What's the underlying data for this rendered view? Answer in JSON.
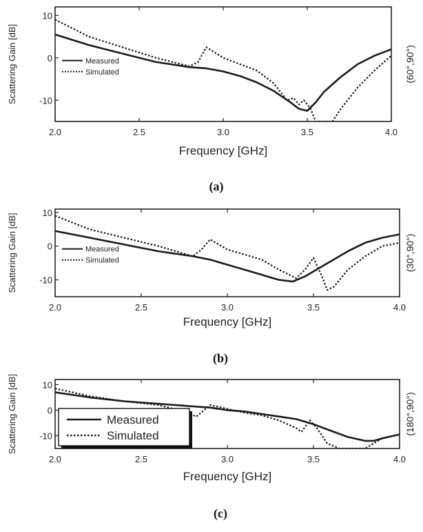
{
  "chart_data": [
    {
      "type": "line",
      "caption": "(a)",
      "ylabel": "Scattering Gain [dB]",
      "xlabel": "Frequency [GHz]",
      "right_label": "(60°,90°)",
      "xlim": [
        2.0,
        4.0
      ],
      "ylim": [
        -15,
        12
      ],
      "xticks": [
        "2.0",
        "2.5",
        "3.0",
        "3.5",
        "4.0"
      ],
      "yticks": [
        {
          "value": 10,
          "label": "10"
        },
        {
          "value": 0,
          "label": "0"
        },
        {
          "value": -10,
          "label": "-10"
        }
      ],
      "legend": {
        "position": "left",
        "style": "plain"
      },
      "series": [
        {
          "name": "Measured",
          "style": "solid",
          "x": [
            2.0,
            2.2,
            2.4,
            2.6,
            2.8,
            2.9,
            3.0,
            3.1,
            3.2,
            3.3,
            3.4,
            3.45,
            3.5,
            3.55,
            3.6,
            3.7,
            3.8,
            3.9,
            4.0
          ],
          "y": [
            5.5,
            3.0,
            1.0,
            -1.0,
            -2.2,
            -2.5,
            -3.2,
            -4.3,
            -5.8,
            -7.8,
            -10.5,
            -12.0,
            -12.5,
            -10.5,
            -8.0,
            -4.5,
            -1.5,
            0.5,
            2.0
          ]
        },
        {
          "name": "Simulated",
          "style": "dashed",
          "x": [
            2.0,
            2.2,
            2.4,
            2.6,
            2.8,
            2.85,
            2.9,
            3.0,
            3.1,
            3.2,
            3.3,
            3.38,
            3.42,
            3.45,
            3.48,
            3.52,
            3.55,
            3.6,
            3.65,
            3.7,
            3.8,
            3.9,
            4.0
          ],
          "y": [
            9.0,
            5.0,
            2.5,
            0.0,
            -2.0,
            -1.0,
            2.5,
            0.0,
            -1.5,
            -3.0,
            -6.0,
            -10.0,
            -9.5,
            -11.0,
            -10.0,
            -12.0,
            -15.0,
            -15.0,
            -15.0,
            -12.0,
            -7.0,
            -3.0,
            0.5
          ]
        }
      ]
    },
    {
      "type": "line",
      "caption": "(b)",
      "ylabel": "Scattering Gain [dB]",
      "xlabel": "Frequency [GHz]",
      "right_label": "(30°,90°)",
      "xlim": [
        2.0,
        4.0
      ],
      "ylim": [
        -15,
        11
      ],
      "xticks": [
        "2.0",
        "2.5",
        "3.0",
        "3.5",
        "4.0"
      ],
      "yticks": [
        {
          "value": 10,
          "label": "10"
        },
        {
          "value": 0,
          "label": "0"
        },
        {
          "value": -10,
          "label": "-10"
        }
      ],
      "legend": {
        "position": "left",
        "style": "plain"
      },
      "series": [
        {
          "name": "Measured",
          "style": "solid",
          "x": [
            2.0,
            2.2,
            2.4,
            2.6,
            2.8,
            2.9,
            3.0,
            3.1,
            3.2,
            3.3,
            3.38,
            3.45,
            3.5,
            3.6,
            3.7,
            3.8,
            3.9,
            4.0
          ],
          "y": [
            4.5,
            2.5,
            0.5,
            -1.5,
            -3.0,
            -4.0,
            -5.5,
            -7.0,
            -8.5,
            -10.0,
            -10.5,
            -9.0,
            -7.5,
            -4.5,
            -1.5,
            1.0,
            2.5,
            3.5
          ]
        },
        {
          "name": "Simulated",
          "style": "dashed",
          "x": [
            2.0,
            2.2,
            2.4,
            2.6,
            2.8,
            2.85,
            2.9,
            3.0,
            3.1,
            3.2,
            3.3,
            3.4,
            3.45,
            3.5,
            3.55,
            3.58,
            3.62,
            3.7,
            3.8,
            3.9,
            4.0
          ],
          "y": [
            9.0,
            5.0,
            2.5,
            0.0,
            -3.0,
            -1.0,
            2.0,
            -1.0,
            -2.5,
            -4.0,
            -7.0,
            -9.5,
            -7.0,
            -3.5,
            -9.0,
            -13.0,
            -12.0,
            -7.0,
            -3.0,
            0.0,
            1.0
          ]
        }
      ]
    },
    {
      "type": "line",
      "caption": "(c)",
      "ylabel": "Scattering Gain [dB]",
      "xlabel": "Frequency [GHz]",
      "right_label": "(180°,90°)",
      "xlim": [
        2.0,
        4.0
      ],
      "ylim": [
        -15,
        12
      ],
      "xticks": [
        "2.0",
        "2.5",
        "3.0",
        "3.5",
        "4.0"
      ],
      "yticks": [
        {
          "value": 10,
          "label": "10"
        },
        {
          "value": 0,
          "label": "0"
        },
        {
          "value": -10,
          "label": "-10"
        }
      ],
      "legend": {
        "position": "bottom-left",
        "style": "boxed"
      },
      "series": [
        {
          "name": "Measured",
          "style": "solid",
          "x": [
            2.0,
            2.2,
            2.4,
            2.6,
            2.8,
            2.9,
            3.0,
            3.1,
            3.2,
            3.3,
            3.4,
            3.5,
            3.6,
            3.7,
            3.8,
            3.85,
            3.9,
            4.0
          ],
          "y": [
            7.0,
            5.0,
            3.5,
            2.5,
            1.5,
            1.0,
            0.0,
            -0.5,
            -1.5,
            -2.5,
            -3.5,
            -5.5,
            -8.0,
            -10.5,
            -12.0,
            -12.0,
            -11.0,
            -9.5
          ]
        },
        {
          "name": "Simulated",
          "style": "dashed",
          "x": [
            2.0,
            2.2,
            2.4,
            2.6,
            2.75,
            2.82,
            2.9,
            3.0,
            3.1,
            3.2,
            3.3,
            3.4,
            3.43,
            3.48,
            3.52,
            3.58,
            3.65,
            3.7,
            3.8,
            3.9,
            4.0
          ],
          "y": [
            8.5,
            5.5,
            3.5,
            2.0,
            -0.5,
            -2.5,
            2.0,
            0.5,
            -1.0,
            -2.0,
            -4.0,
            -7.0,
            -8.5,
            -4.0,
            -7.0,
            -13.0,
            -15.0,
            -15.0,
            -15.0,
            -11.0,
            -9.5
          ]
        }
      ]
    }
  ]
}
